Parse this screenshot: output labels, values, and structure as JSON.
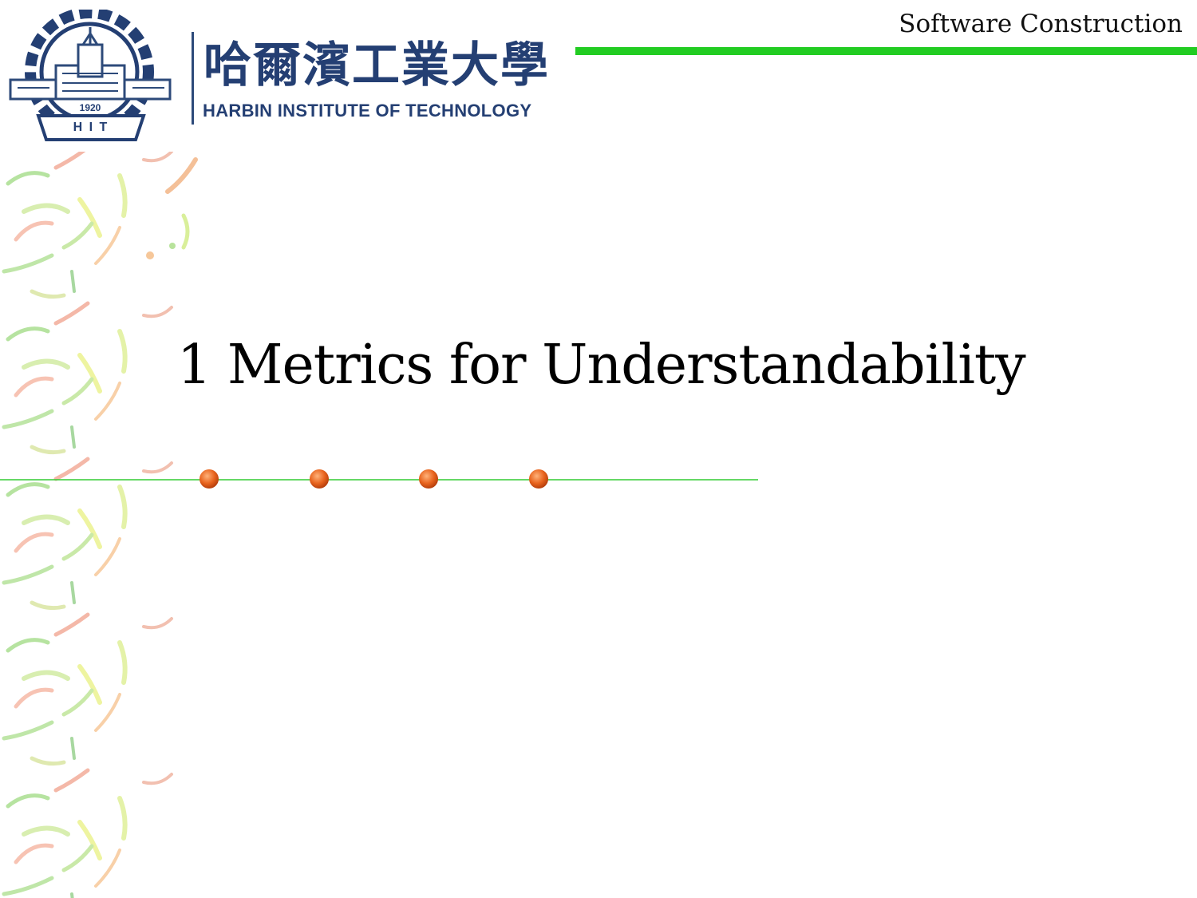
{
  "header": {
    "course_title": "Software Construction",
    "accent_color": "#22cc22"
  },
  "logo": {
    "emblem_icon": "hit-emblem-icon",
    "year": "1920",
    "abbreviation": "H I T",
    "chinese_name": "哈爾濱工業大學",
    "english_name": "HARBIN INSTITUTE OF TECHNOLOGY",
    "brand_color": "#243f73"
  },
  "slide": {
    "title": "1 Metrics for Understandability"
  },
  "decoration": {
    "dot_color": "#e8641e",
    "line_color": "#33cc33",
    "dot_count": 4
  }
}
